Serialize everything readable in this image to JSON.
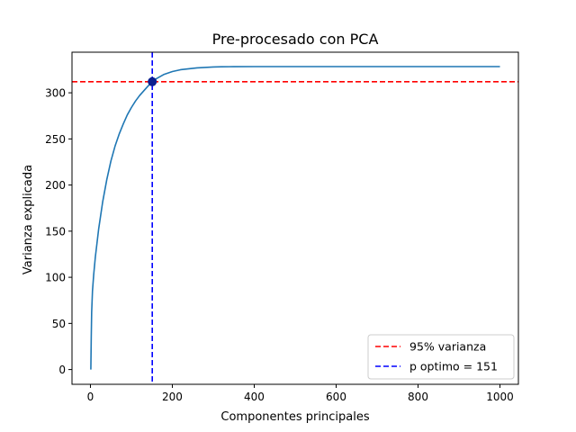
{
  "chart_data": {
    "type": "line",
    "title": "Pre-procesado con PCA",
    "xlabel": "Componentes principales",
    "ylabel": "Varianza explicada",
    "xlim": [
      -45,
      1045
    ],
    "ylim": [
      -16,
      344
    ],
    "xticks": [
      0,
      200,
      400,
      600,
      800,
      1000
    ],
    "yticks": [
      0,
      50,
      100,
      150,
      200,
      250,
      300
    ],
    "grid": false,
    "legend_position": "lower-right",
    "series": [
      {
        "color": "#1f77b4",
        "x": [
          1,
          2,
          3,
          5,
          8,
          12,
          20,
          30,
          40,
          50,
          60,
          70,
          80,
          90,
          100,
          110,
          120,
          130,
          140,
          151,
          160,
          180,
          200,
          220,
          240,
          260,
          280,
          300,
          320,
          350,
          400,
          500,
          600,
          700,
          800,
          900,
          1000
        ],
        "values": [
          0,
          35,
          62,
          85,
          103,
          122,
          152,
          182,
          206,
          226,
          242,
          255,
          266,
          276,
          284,
          291,
          297,
          302,
          307,
          312,
          315,
          320,
          323,
          325,
          326,
          327,
          327.5,
          328,
          328.2,
          328.3,
          328.4,
          328.4,
          328.4,
          328.4,
          328.4,
          328.4,
          328.4
        ]
      }
    ],
    "reference_lines": [
      {
        "orientation": "horizontal",
        "value": 312,
        "color": "#ff0000",
        "style": "dashed",
        "label": "95% varianza"
      },
      {
        "orientation": "vertical",
        "value": 151,
        "color": "#0000ff",
        "style": "dashed",
        "label": "p optimo = 151"
      }
    ],
    "marker": {
      "x": 151,
      "y": 312,
      "color": "#0b1f8f"
    }
  }
}
